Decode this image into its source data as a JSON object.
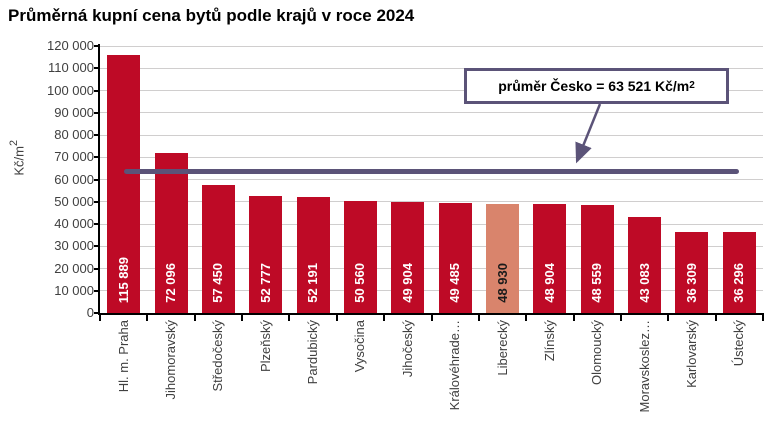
{
  "title": "Průměrná kupní cena bytů podle krajů v roce 2024",
  "chart_data": {
    "type": "bar",
    "title": "Průměrná kupní cena bytů podle krajů v roce 2024",
    "ylabel": "Kč/m²",
    "ylabel_main": "Kč/m",
    "ylabel_sup": "2",
    "ylim": [
      0,
      120000
    ],
    "ytick_step": 10000,
    "ytick_labels": [
      "0",
      "10 000",
      "20 000",
      "30 000",
      "40 000",
      "50 000",
      "60 000",
      "70 000",
      "80 000",
      "90 000",
      "100 000",
      "110 000",
      "120 000"
    ],
    "grid": true,
    "legend_position": "none",
    "categories": [
      "Hl. m. Praha",
      "Jihomoravský",
      "Středočeský",
      "Plzeňský",
      "Pardubický",
      "Vysočina",
      "Jihočeský",
      "Královéhrade…",
      "Liberecký",
      "Zlínský",
      "Olomoucký",
      "Moravskoslez…",
      "Karlovarský",
      "Ústecký"
    ],
    "values": [
      115889,
      72096,
      57450,
      52777,
      52191,
      50560,
      49904,
      49485,
      48930,
      48904,
      48559,
      43083,
      36309,
      36296
    ],
    "value_labels": [
      "115 889",
      "72 096",
      "57 450",
      "52 777",
      "52 191",
      "50 560",
      "49 904",
      "49 485",
      "48 930",
      "48 904",
      "48 559",
      "43 083",
      "36 309",
      "36 296"
    ],
    "highlight_index": 8,
    "colors": {
      "bar": "#BE0A26",
      "highlight_bar": "#D9846C",
      "grid": "#D0CECE",
      "axis": "#000000",
      "average_line": "#5B5378",
      "value_label": "#FFFFFF",
      "value_label_highlight": "#1A1A1A"
    },
    "average_line": {
      "value": 63521,
      "label_main": "průměr Česko = 63 521 Kč/m",
      "label_sup": "2"
    }
  }
}
